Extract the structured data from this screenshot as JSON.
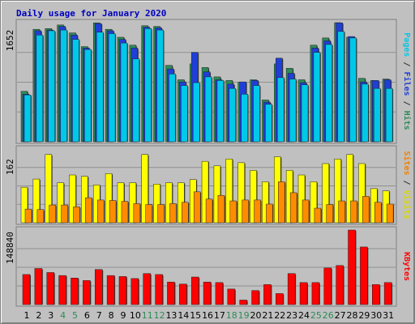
{
  "chart_data": {
    "type": "bar",
    "title": "Daily usage for January 2020",
    "categories": [
      "1",
      "2",
      "3",
      "4",
      "5",
      "6",
      "7",
      "8",
      "9",
      "10",
      "11",
      "12",
      "13",
      "14",
      "15",
      "16",
      "17",
      "18",
      "19",
      "20",
      "21",
      "22",
      "23",
      "24",
      "25",
      "26",
      "27",
      "28",
      "29",
      "30",
      "31"
    ],
    "weekend_days": [
      "4",
      "5",
      "11",
      "12",
      "18",
      "19",
      "25",
      "26"
    ],
    "panels": [
      {
        "id": "top",
        "max_label": "1652",
        "ylim": [
          0,
          1652
        ],
        "axis_title_parts": [
          {
            "text": "Pages",
            "color": "#00c8e8"
          },
          {
            "text": " / ",
            "color": "#333333"
          },
          {
            "text": "Files",
            "color": "#1f3fd6"
          },
          {
            "text": " / ",
            "color": "#333333"
          },
          {
            "text": "Hits",
            "color": "#2e8b57"
          }
        ],
        "series": [
          {
            "name": "Hits",
            "color": "#2e8b57",
            "values": [
              700,
              1560,
              1570,
              1620,
              1510,
              1320,
              1650,
              1560,
              1450,
              1340,
              1610,
              1600,
              1060,
              860,
              1080,
              1030,
              900,
              850,
              825,
              860,
              580,
              1080,
              1020,
              860,
              1340,
              1440,
              1652,
              1450,
              880,
              850,
              870
            ]
          },
          {
            "name": "Files",
            "color": "#1f3fd6",
            "values": [
              660,
              1540,
              1550,
              1600,
              1480,
              1300,
              1640,
              1540,
              1420,
              1300,
              1590,
              1580,
              1010,
              830,
              1240,
              970,
              860,
              800,
              830,
              850,
              550,
              1160,
              950,
              820,
              1300,
              1400,
              1650,
              1460,
              830,
              850,
              860
            ]
          },
          {
            "name": "Pages",
            "color": "#00c8e8",
            "values": [
              650,
              1480,
              1540,
              1550,
              1420,
              1280,
              1520,
              1500,
              1370,
              1150,
              1570,
              1550,
              940,
              780,
              820,
              900,
              850,
              740,
              660,
              780,
              520,
              890,
              870,
              790,
              1240,
              1350,
              1530,
              1440,
              800,
              740,
              740
            ]
          }
        ]
      },
      {
        "id": "middle",
        "max_label": "162",
        "ylim": [
          0,
          162
        ],
        "axis_title_parts": [
          {
            "text": "Sites",
            "color": "#f08000"
          },
          {
            "text": " / ",
            "color": "#333333"
          },
          {
            "text": "Visits",
            "color": "#d8d800"
          }
        ],
        "series": [
          {
            "name": "Visits",
            "color": "#ffff00",
            "values": [
              78,
              96,
              150,
              88,
              105,
              102,
              83,
              108,
              88,
              88,
              150,
              85,
              88,
              88,
              95,
              135,
              125,
              140,
              132,
              115,
              90,
              145,
              115,
              105,
              90,
              130,
              140,
              150,
              130,
              75,
              70
            ]
          },
          {
            "name": "Sites",
            "color": "#ff8c00",
            "values": [
              30,
              29,
              39,
              39,
              35,
              55,
              50,
              49,
              47,
              42,
              40,
              40,
              42,
              45,
              68,
              52,
              60,
              48,
              50,
              50,
              41,
              90,
              66,
              50,
              32,
              40,
              48,
              48,
              58,
              45,
              41
            ]
          }
        ]
      },
      {
        "id": "bottom",
        "max_label": "148840",
        "ylim": [
          0,
          148840
        ],
        "axis_title_parts": [
          {
            "text": "KBytes",
            "color": "#ff0000"
          }
        ],
        "series": [
          {
            "name": "KBytes",
            "color": "#ff0000",
            "values": [
              60000,
              72000,
              64000,
              58000,
              53000,
              48000,
              70000,
              58000,
              56000,
              52000,
              62000,
              60000,
              45000,
              41000,
              55000,
              45000,
              44000,
              31000,
              9000,
              28000,
              40000,
              22000,
              62000,
              44000,
              44000,
              73000,
              78000,
              148840,
              115000,
              40000,
              44000
            ]
          }
        ]
      }
    ]
  }
}
